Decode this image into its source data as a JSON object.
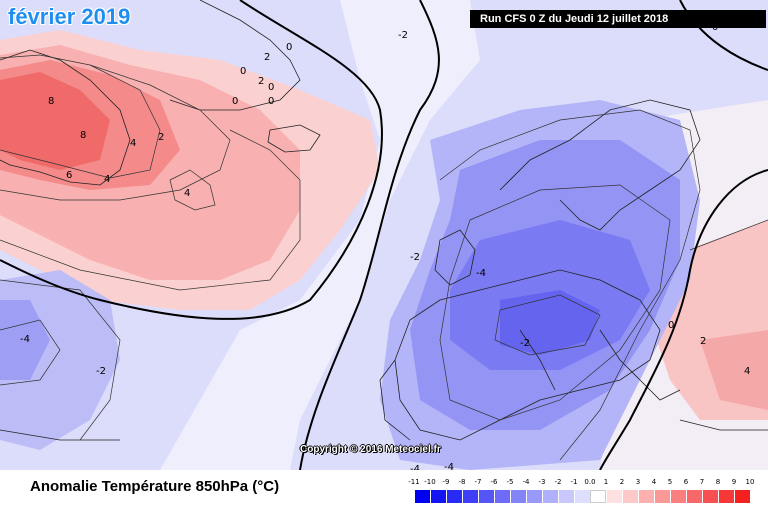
{
  "header": {
    "period_title": "février 2019",
    "run_info": "Run CFS 0 Z du Jeudi 12 juillet 2018"
  },
  "map": {
    "copyright": "Copyright © 2016 Meteociel.fr",
    "contour_labels": [
      "-2",
      "0",
      "2",
      "0",
      "2",
      "0",
      "0",
      "0",
      "0",
      "8",
      "8",
      "4",
      "2",
      "6",
      "4",
      "4",
      "-2",
      "-4",
      "-2",
      "-4",
      "-2",
      "-6",
      "0",
      "2",
      "0",
      "4",
      "-4",
      "-4"
    ]
  },
  "legend": {
    "title": "Anomalie Température 850hPa (°C)",
    "ticks": [
      "-11",
      "-10",
      "-9",
      "-8",
      "-7",
      "-6",
      "-5",
      "-4",
      "-3",
      "-2",
      "-1",
      "0.0",
      "1",
      "2",
      "3",
      "4",
      "5",
      "6",
      "7",
      "8",
      "9",
      "10"
    ],
    "colors": [
      "#0000f0",
      "#1414f5",
      "#2a2af6",
      "#3f3ff7",
      "#5656f8",
      "#6c6cf9",
      "#8383fa",
      "#9999fb",
      "#b0b0fc",
      "#c8c8fd",
      "#dedefe",
      "#ffffff",
      "#fee0e0",
      "#fdc8c8",
      "#fcb0b0",
      "#fb9898",
      "#fa8080",
      "#f96868",
      "#f85050",
      "#f73838",
      "#f52020"
    ]
  }
}
